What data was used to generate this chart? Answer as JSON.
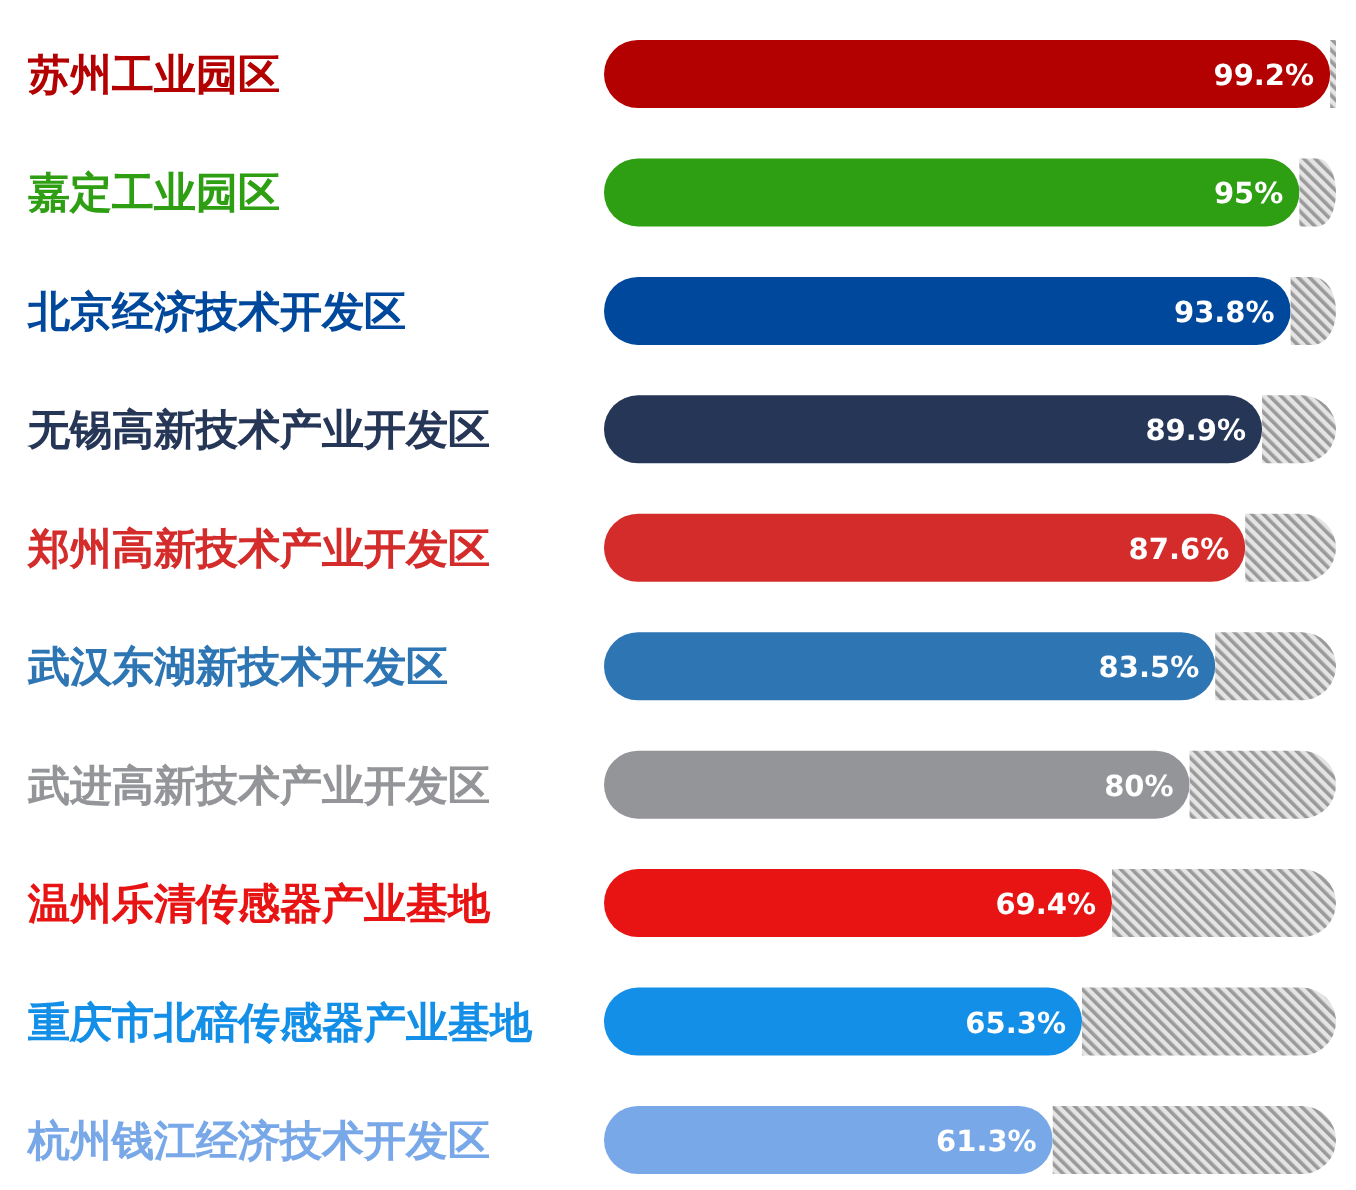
{
  "chart_data": {
    "type": "bar",
    "orientation": "horizontal",
    "stacked": true,
    "categories": [
      "苏州工业园区",
      "嘉定工业园区",
      "北京经济技术开发区",
      "无锡高新技术产业开发区",
      "郑州高新技术产业开发区",
      "武汉东湖新技术开发区",
      "武进高新技术产业开发区",
      "温州乐清传感器产业基地",
      "重庆市北碚传感器产业基地",
      "杭州钱江经济技术开发区"
    ],
    "series": [
      {
        "values": [
          99.2,
          95,
          93.8,
          89.9,
          87.6,
          83.5,
          80,
          69.4,
          65.3,
          61.3
        ],
        "value_labels": [
          "99.2%",
          "95%",
          "93.8%",
          "89.9%",
          "87.6%",
          "83.5%",
          "80%",
          "69.4%",
          "65.3%",
          "61.3%"
        ],
        "colors": [
          "#b30000",
          "#2e9e12",
          "#00489c",
          "#263657",
          "#d42b2b",
          "#2e75b4",
          "#939598",
          "#e81414",
          "#148fe8",
          "#78a8e8"
        ]
      },
      {
        "values": [
          0.8,
          5,
          6.2,
          10.1,
          12.4,
          16.5,
          20,
          30.6,
          34.7,
          38.7
        ],
        "color": "#9a9a9a"
      }
    ],
    "xlim": [
      0,
      100
    ],
    "tick_labels": "y"
  }
}
